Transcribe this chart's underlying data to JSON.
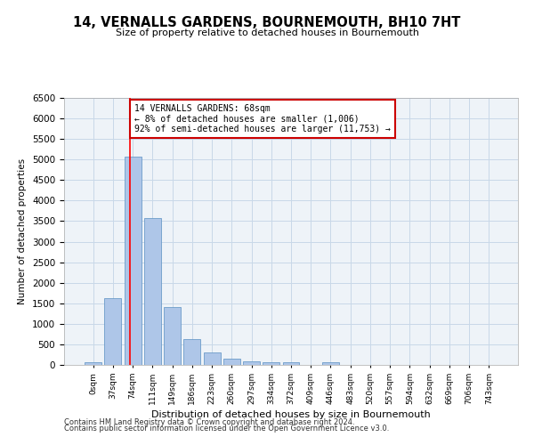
{
  "title": "14, VERNALLS GARDENS, BOURNEMOUTH, BH10 7HT",
  "subtitle": "Size of property relative to detached houses in Bournemouth",
  "xlabel": "Distribution of detached houses by size in Bournemouth",
  "ylabel": "Number of detached properties",
  "categories": [
    "0sqm",
    "37sqm",
    "74sqm",
    "111sqm",
    "149sqm",
    "186sqm",
    "223sqm",
    "260sqm",
    "297sqm",
    "334sqm",
    "372sqm",
    "409sqm",
    "446sqm",
    "483sqm",
    "520sqm",
    "557sqm",
    "594sqm",
    "632sqm",
    "669sqm",
    "706sqm",
    "743sqm"
  ],
  "bar_heights": [
    75,
    1620,
    5080,
    3570,
    1410,
    620,
    310,
    155,
    90,
    55,
    60,
    0,
    55,
    0,
    0,
    0,
    0,
    0,
    0,
    0,
    0
  ],
  "bar_color": "#aec6e8",
  "bar_edge_color": "#5a8fc2",
  "red_line_x": 1.85,
  "annotation_text": "14 VERNALLS GARDENS: 68sqm\n← 8% of detached houses are smaller (1,006)\n92% of semi-detached houses are larger (11,753) →",
  "annotation_box_color": "#ffffff",
  "annotation_box_edge": "#cc0000",
  "ylim": [
    0,
    6500
  ],
  "yticks": [
    0,
    500,
    1000,
    1500,
    2000,
    2500,
    3000,
    3500,
    4000,
    4500,
    5000,
    5500,
    6000,
    6500
  ],
  "grid_color": "#c8d8e8",
  "background_color": "#eef3f8",
  "footer1": "Contains HM Land Registry data © Crown copyright and database right 2024.",
  "footer2": "Contains public sector information licensed under the Open Government Licence v3.0."
}
